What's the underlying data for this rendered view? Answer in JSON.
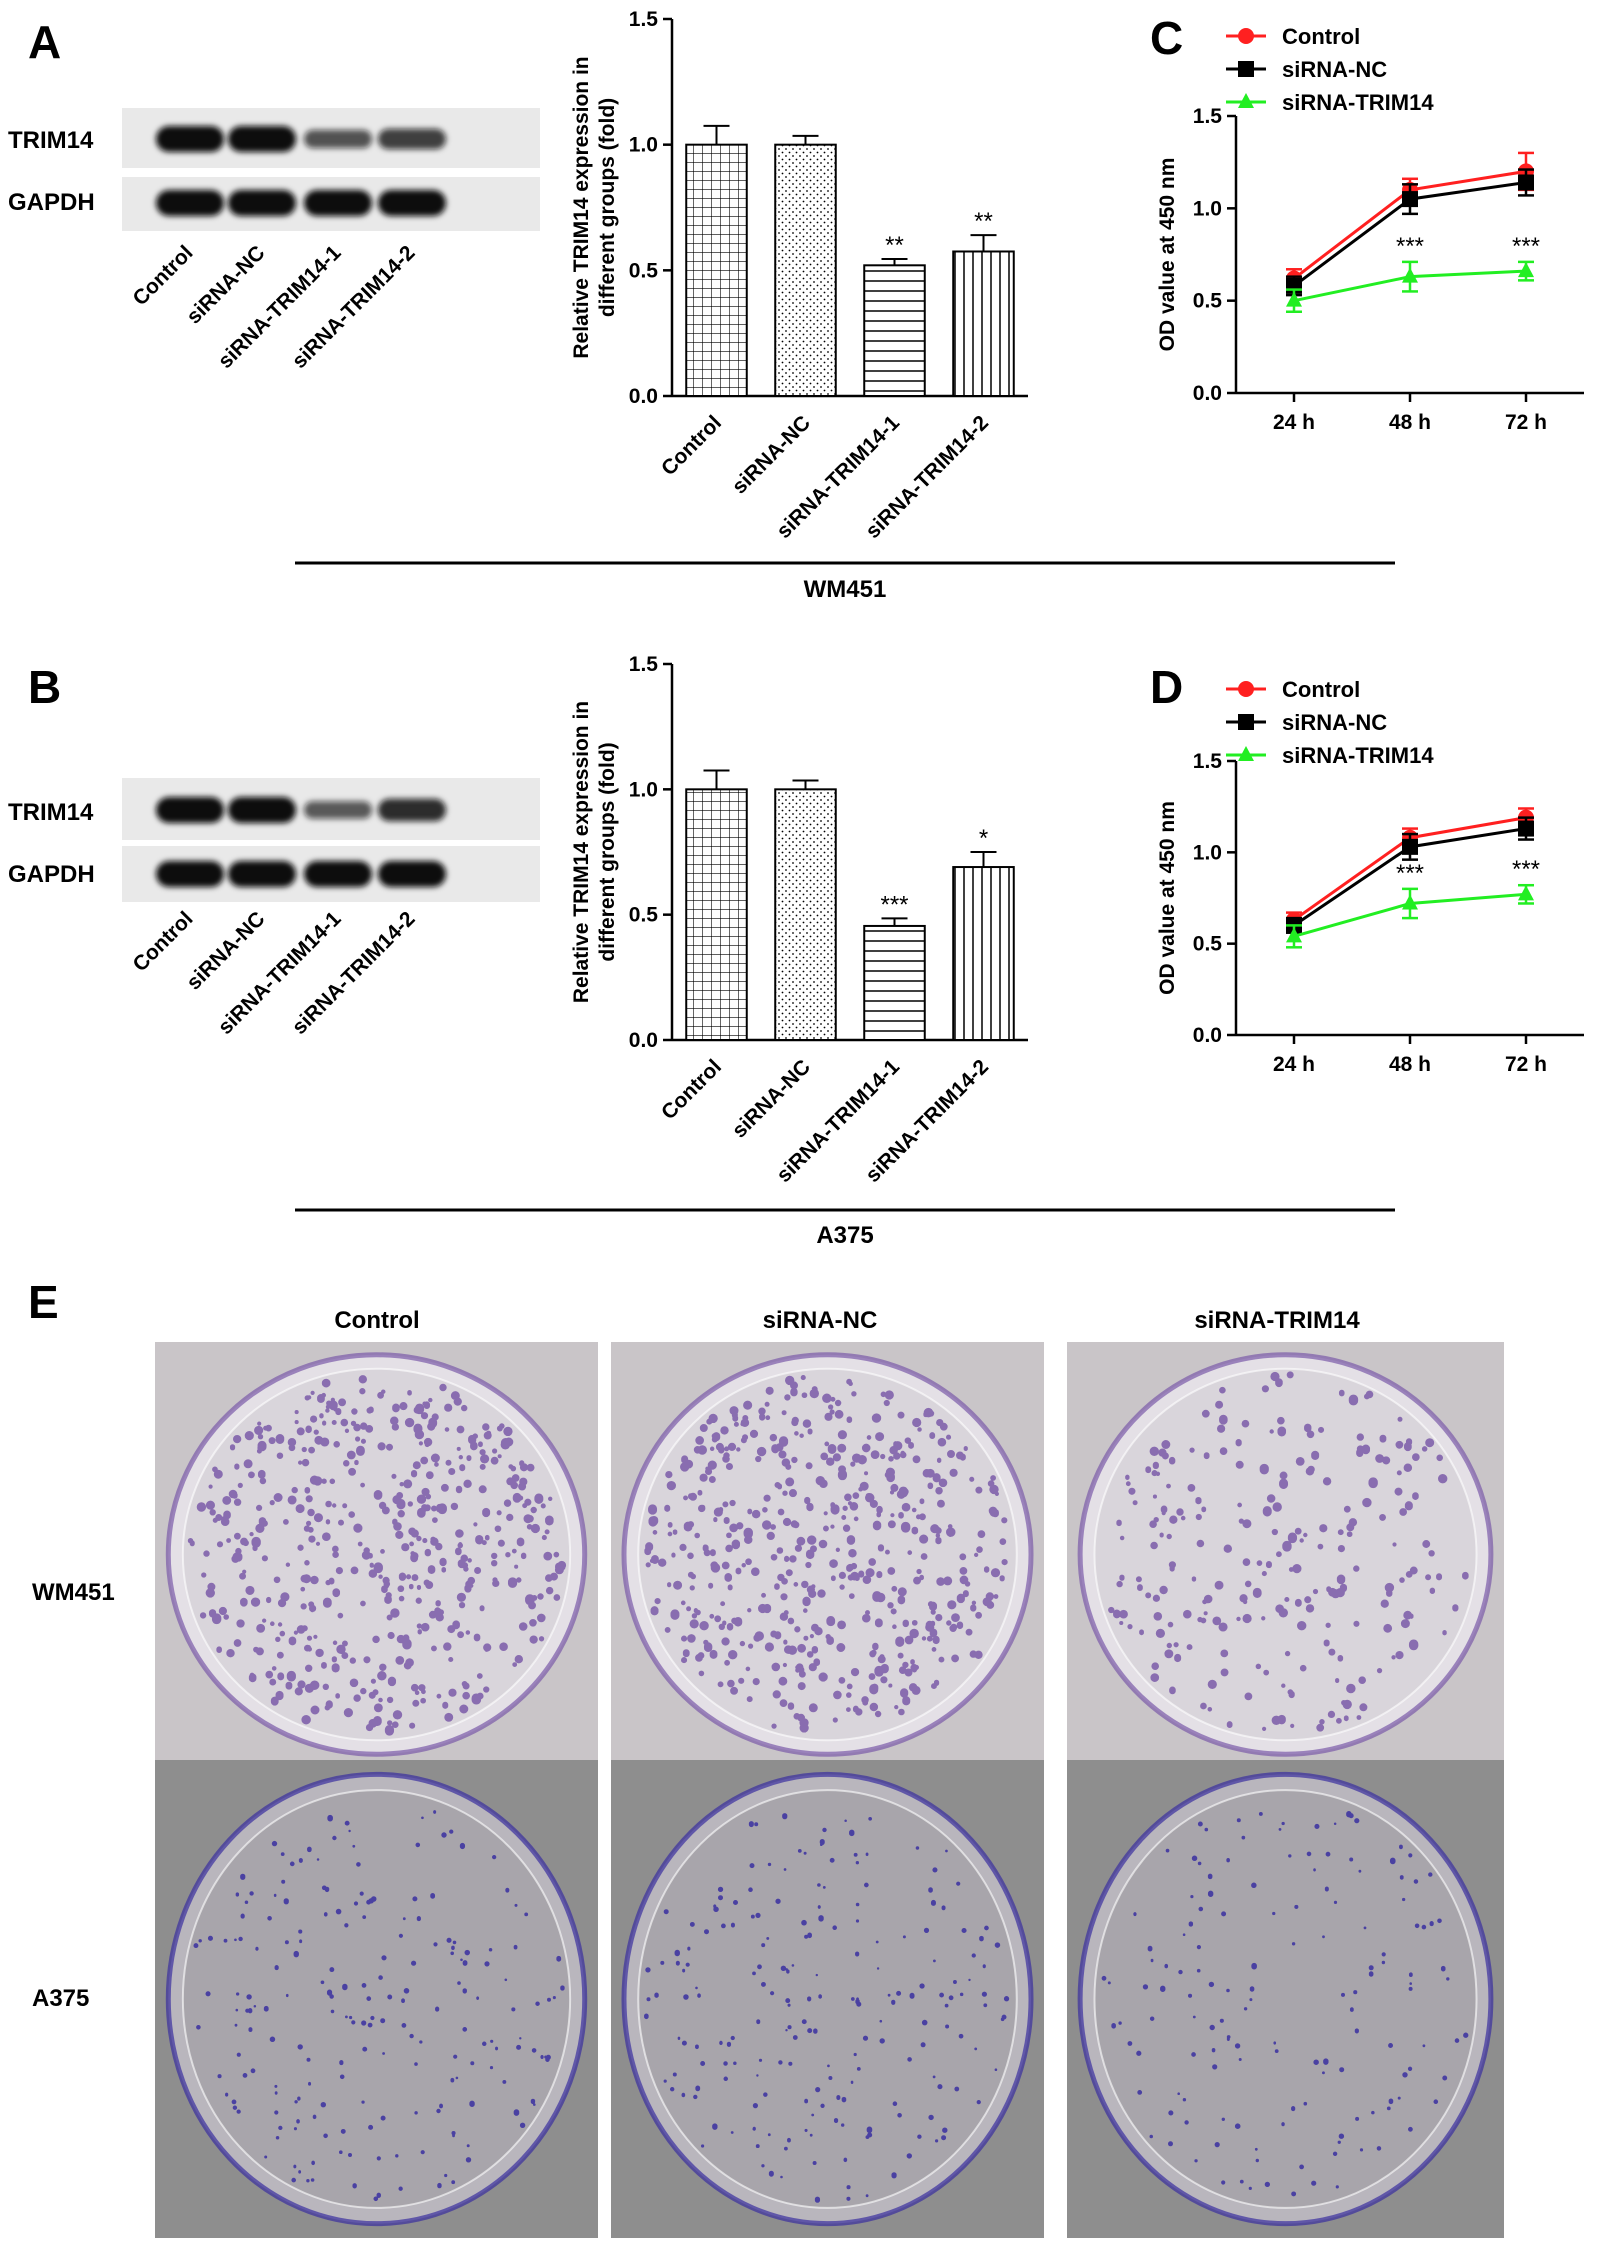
{
  "panels": {
    "A": {
      "letter": "A",
      "blot_rows": [
        "TRIM14",
        "GAPDH"
      ],
      "blot_lanes": [
        "Control",
        "siRNA-NC",
        "siRNA-TRIM14-1",
        "siRNA-TRIM14-2"
      ],
      "trim14_band_intensity": [
        1.0,
        1.0,
        0.45,
        0.6
      ]
    },
    "B": {
      "letter": "B",
      "blot_rows": [
        "TRIM14",
        "GAPDH"
      ],
      "blot_lanes": [
        "Control",
        "siRNA-NC",
        "siRNA-TRIM14-1",
        "siRNA-TRIM14-2"
      ],
      "trim14_band_intensity": [
        1.0,
        1.0,
        0.4,
        0.75
      ]
    },
    "C": {
      "letter": "C"
    },
    "D": {
      "letter": "D"
    },
    "E": {
      "letter": "E",
      "columns": [
        "Control",
        "siRNA-NC",
        "siRNA-TRIM14"
      ],
      "rows": [
        "WM451",
        "A375"
      ],
      "colony_density": [
        [
          1.0,
          1.0,
          0.45
        ],
        [
          0.55,
          0.55,
          0.4
        ]
      ],
      "colors": {
        "wm451_colony": "#7a5aa8",
        "a375_colony": "#3a2fa0",
        "wm451_bg": "#c9c5c8",
        "a375_bg": "#8e8e8e"
      }
    }
  },
  "cell_line_labels": [
    "WM451",
    "A375"
  ],
  "chart_data": [
    {
      "id": "bar-A",
      "type": "bar",
      "categories": [
        "Control",
        "siRNA-NC",
        "siRNA-TRIM14-1",
        "siRNA-TRIM14-2"
      ],
      "values": [
        1.0,
        1.0,
        0.52,
        0.575
      ],
      "errors": [
        0.075,
        0.035,
        0.025,
        0.065
      ],
      "significance": [
        "",
        "",
        "**",
        "**"
      ],
      "xlabel": "",
      "ylabel": "Relative TRIM14 expression in different groups (fold)",
      "ylim": [
        0,
        1.5
      ],
      "yticks": [
        "0.0",
        "0.5",
        "1.0",
        "1.5"
      ]
    },
    {
      "id": "bar-B",
      "type": "bar",
      "categories": [
        "Control",
        "siRNA-NC",
        "siRNA-TRIM14-1",
        "siRNA-TRIM14-2"
      ],
      "values": [
        1.0,
        1.0,
        0.455,
        0.69
      ],
      "errors": [
        0.075,
        0.035,
        0.03,
        0.06
      ],
      "significance": [
        "",
        "",
        "***",
        "*"
      ],
      "xlabel": "",
      "ylabel": "Relative TRIM14 expression in different groups (fold)",
      "ylim": [
        0,
        1.5
      ],
      "yticks": [
        "0.0",
        "0.5",
        "1.0",
        "1.5"
      ]
    },
    {
      "id": "line-C",
      "type": "line",
      "x": [
        "24 h",
        "48 h",
        "72 h"
      ],
      "series": [
        {
          "name": "Control",
          "values": [
            0.62,
            1.1,
            1.2
          ],
          "errors": [
            0.05,
            0.06,
            0.1
          ],
          "color": "#ff2020",
          "marker": "circle"
        },
        {
          "name": "siRNA-NC",
          "values": [
            0.58,
            1.05,
            1.14
          ],
          "errors": [
            0.05,
            0.08,
            0.07
          ],
          "color": "#000000",
          "marker": "square"
        },
        {
          "name": "siRNA-TRIM14",
          "values": [
            0.5,
            0.63,
            0.66
          ],
          "errors": [
            0.06,
            0.08,
            0.05
          ],
          "color": "#22ee22",
          "marker": "triangle"
        }
      ],
      "significance": [
        "",
        "***",
        "***"
      ],
      "xlabel": "",
      "ylabel": "OD value at 450 nm",
      "ylim": [
        0,
        1.5
      ],
      "yticks": [
        "0.0",
        "0.5",
        "1.0",
        "1.5"
      ],
      "legend": "top-left"
    },
    {
      "id": "line-D",
      "type": "line",
      "x": [
        "24 h",
        "48 h",
        "72 h"
      ],
      "series": [
        {
          "name": "Control",
          "values": [
            0.63,
            1.08,
            1.19
          ],
          "errors": [
            0.04,
            0.05,
            0.05
          ],
          "color": "#ff2020",
          "marker": "circle"
        },
        {
          "name": "siRNA-NC",
          "values": [
            0.6,
            1.03,
            1.13
          ],
          "errors": [
            0.04,
            0.07,
            0.06
          ],
          "color": "#000000",
          "marker": "square"
        },
        {
          "name": "siRNA-TRIM14",
          "values": [
            0.54,
            0.72,
            0.77
          ],
          "errors": [
            0.06,
            0.08,
            0.05
          ],
          "color": "#22ee22",
          "marker": "triangle"
        }
      ],
      "significance": [
        "",
        "***",
        "***"
      ],
      "xlabel": "",
      "ylabel": "OD value at 450 nm",
      "ylim": [
        0,
        1.5
      ],
      "yticks": [
        "0.0",
        "0.5",
        "1.0",
        "1.5"
      ],
      "legend": "top-left"
    }
  ]
}
